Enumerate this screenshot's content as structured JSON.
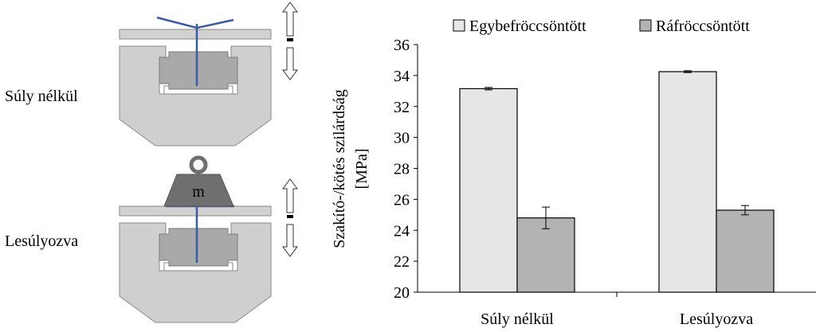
{
  "diagram": {
    "case_labels": [
      "Súly nélkül",
      "Lesúlyozva"
    ],
    "weight_label": "m",
    "colors": {
      "plate": "#d2d2d2",
      "plate_stroke": "#8a8a8a",
      "grip": "#cfcfcf",
      "block": "#a9a9a9",
      "weight": "#6f6f6f",
      "fiber": "#3a5aa8",
      "arrow_stroke": "#333333"
    }
  },
  "chart_data": {
    "type": "bar",
    "categories": [
      "Súly nélkül",
      "Lesúlyozva"
    ],
    "series": [
      {
        "name": "Egybefröccsöntött",
        "values": [
          33.15,
          34.25
        ],
        "errors": [
          0.08,
          0.06
        ],
        "color": "#e6e6e6"
      },
      {
        "name": "Ráfröccsöntött",
        "values": [
          24.8,
          25.3
        ],
        "errors": [
          0.7,
          0.3
        ],
        "color": "#b3b3b3"
      }
    ],
    "ylabel_lines": [
      "Szakító-/kötés szilárdság",
      "[MPa]"
    ],
    "ylim": [
      20,
      36
    ],
    "yticks": [
      "20",
      "22",
      "24",
      "26",
      "28",
      "30",
      "32",
      "34",
      "36"
    ],
    "legend_position": "top",
    "grid": false
  }
}
